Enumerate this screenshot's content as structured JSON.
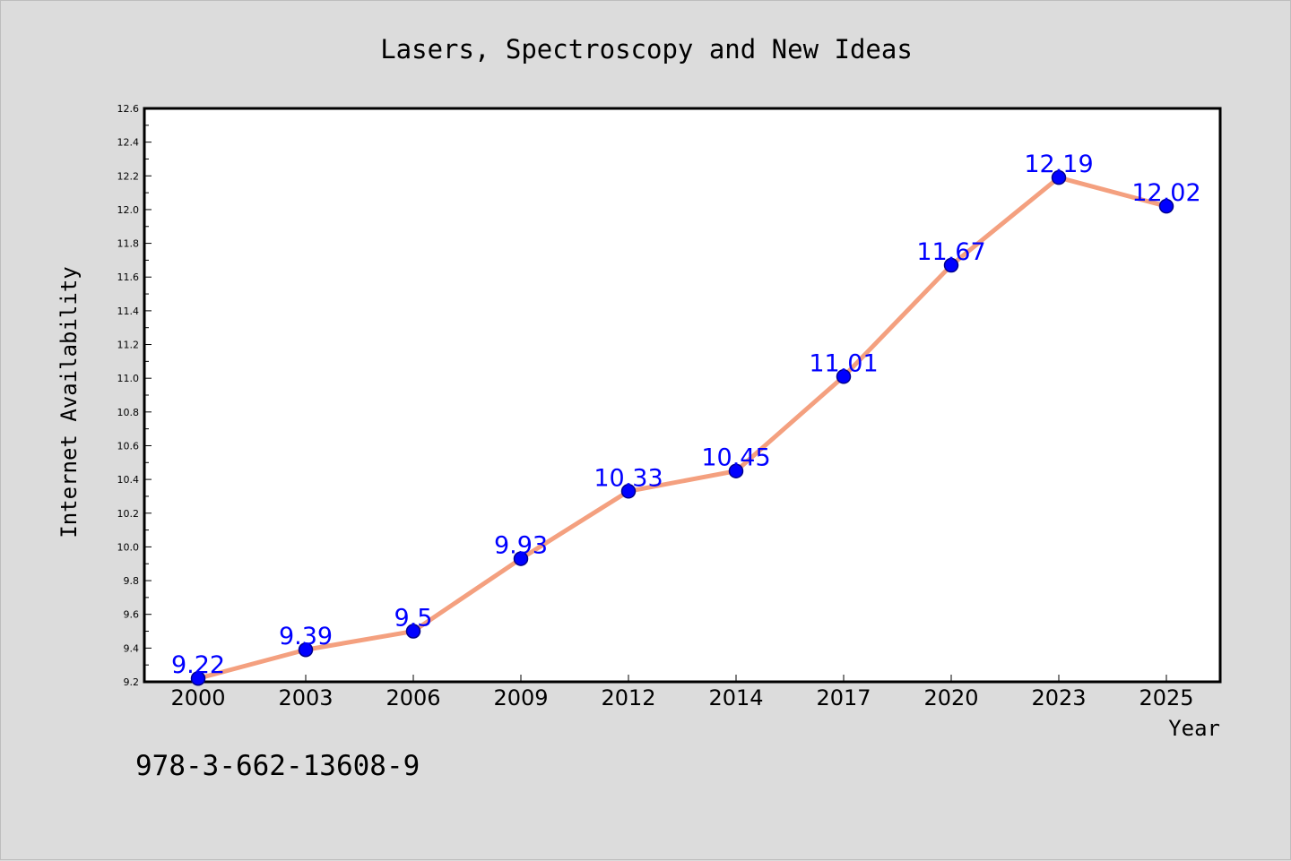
{
  "colors": {
    "background": "#dcdcdc",
    "plot_area": "#ffffff",
    "line": "#f4a07f",
    "marker": "#0000ff",
    "data_label": "#0000ff"
  },
  "footnote": "978-3-662-13608-9",
  "chart_data": {
    "type": "line",
    "title": "Lasers, Spectroscopy and New Ideas",
    "xlabel": "Year",
    "ylabel": "Internet Availability",
    "categories": [
      "2000",
      "2003",
      "2006",
      "2009",
      "2012",
      "2014",
      "2017",
      "2020",
      "2023",
      "2025"
    ],
    "series": [
      {
        "values": [
          9.22,
          9.39,
          9.5,
          9.93,
          10.33,
          10.45,
          11.01,
          11.67,
          12.19,
          12.02
        ],
        "value_labels": [
          "9.22",
          "9.39",
          "9.5",
          "9.93",
          "10.33",
          "10.45",
          "11.01",
          "11.67",
          "12.19",
          "12.02"
        ]
      }
    ],
    "ylim": [
      9.2,
      12.6
    ],
    "yticks": [
      "9.2",
      "9.4",
      "9.6",
      "9.8",
      "10.0",
      "10.2",
      "10.4",
      "10.6",
      "10.8",
      "11.0",
      "11.2",
      "11.4",
      "11.6",
      "11.8",
      "12.0",
      "12.2",
      "12.4",
      "12.6"
    ],
    "grid": false,
    "legend": "none"
  }
}
